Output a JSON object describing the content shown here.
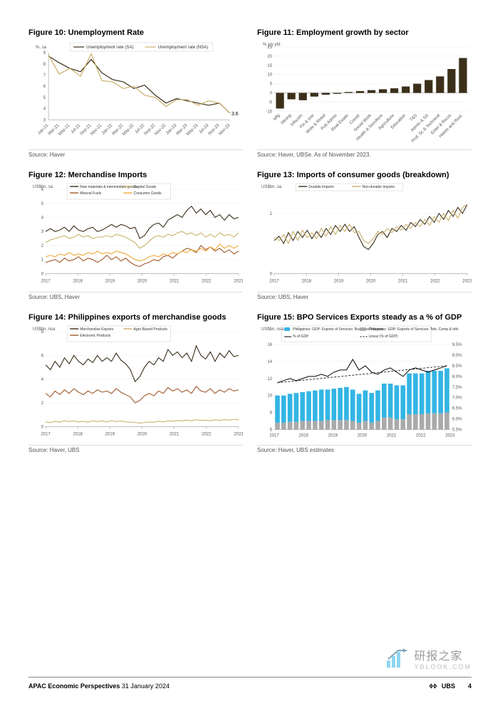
{
  "figures": {
    "f10": {
      "title": "Figure 10: Unemployment Rate",
      "ylabel": "%, sa",
      "ylim": [
        3,
        9
      ],
      "yticks": [
        3,
        4,
        5,
        6,
        7,
        8,
        9
      ],
      "xticks": [
        "Jan-21",
        "Mar-21",
        "May-21",
        "Jul-21",
        "Sep-21",
        "Nov-21",
        "Jan-22",
        "Mar-22",
        "May-22",
        "Jul-22",
        "Sep-22",
        "Nov-22",
        "Jan-23",
        "Mar-23",
        "May-23",
        "Jul-23",
        "Sep-23",
        "Nov-23"
      ],
      "series": [
        {
          "name": "Unemployment rate (SA)",
          "color": "#3b2f1a",
          "vals": [
            8.7,
            8.1,
            7.6,
            7.3,
            8.4,
            7.2,
            6.6,
            6.4,
            5.8,
            6.1,
            5.2,
            4.5,
            4.9,
            4.7,
            4.5,
            4.3,
            4.5,
            3.6
          ]
        },
        {
          "name": "Unemployment rate (NSA)",
          "color": "#c9b06a",
          "vals": [
            8.8,
            7.1,
            7.6,
            6.9,
            8.9,
            6.5,
            6.4,
            5.8,
            6.0,
            5.2,
            5.0,
            4.2,
            4.8,
            4.8,
            4.3,
            4.7,
            4.5,
            3.6
          ]
        }
      ],
      "end_label": "3.6",
      "source": "Source: Haver",
      "title_fontsize": 11,
      "label_fontsize": 6
    },
    "f11": {
      "title": "Figure 11: Employment growth by sector",
      "ylabel": "% y/y ytd",
      "ylim": [
        -10,
        25
      ],
      "yticks": [
        -10,
        -5,
        0,
        5,
        10,
        15,
        20,
        25
      ],
      "categories": [
        "Mfg",
        "Mining",
        "Infocom",
        "Fin & Insr",
        "Wsle & Retail",
        "Pub Admin",
        "Real Estate",
        "Constr",
        "Social Work",
        "Health & Soculture",
        "Agriculture",
        "Education",
        "T&S",
        "Admin & SS",
        "Prof, Sc & Technical",
        "Enter & Recre",
        "Hotels and Rest."
      ],
      "values": [
        -8.5,
        -3.5,
        -4.0,
        -2.0,
        -1.0,
        -0.5,
        0.5,
        1.0,
        1.5,
        2.0,
        2.5,
        3.5,
        5.0,
        7.0,
        9.0,
        13.0,
        19.0
      ],
      "bar_color": "#3b2f1a",
      "source": "Source: Haver, UBSe. As of November 2023."
    },
    "f12": {
      "title": "Figure 12: Merchandise Imports",
      "ylabel": "US$bn, sa",
      "ylim": [
        0,
        6
      ],
      "yticks": [
        0,
        1,
        2,
        3,
        4,
        5,
        6
      ],
      "xticks": [
        "2017",
        "2018",
        "2019",
        "2020",
        "2021",
        "2022",
        "2023"
      ],
      "series": [
        {
          "name": "Raw materials & intermediate goods",
          "color": "#3b2f1a",
          "vals": [
            3.0,
            3.2,
            3.0,
            3.1,
            3.3,
            3.0,
            3.4,
            3.1,
            3.0,
            3.2,
            3.3,
            3.0,
            3.1,
            3.3,
            3.5,
            3.3,
            3.5,
            3.4,
            3.2,
            3.3,
            2.5,
            2.7,
            3.2,
            3.5,
            3.6,
            3.3,
            3.8,
            4.0,
            4.2,
            4.0,
            4.5,
            4.8,
            4.3,
            4.6,
            4.2,
            4.5,
            4.0,
            4.2,
            3.8,
            4.2,
            3.9,
            4.0
          ]
        },
        {
          "name": "Capital Goods",
          "color": "#c9b06a",
          "vals": [
            2.2,
            2.4,
            2.5,
            2.6,
            2.7,
            2.5,
            2.6,
            2.8,
            2.6,
            2.7,
            2.5,
            2.6,
            2.6,
            2.7,
            2.6,
            2.8,
            2.7,
            2.6,
            2.4,
            2.2,
            1.8,
            2.0,
            2.3,
            2.6,
            2.7,
            2.6,
            2.8,
            2.7,
            2.9,
            3.0,
            2.8,
            2.9,
            2.7,
            2.9,
            2.6,
            2.8,
            2.6,
            2.9,
            2.7,
            2.8,
            2.6,
            2.9
          ]
        },
        {
          "name": "Mineral Fuels",
          "color": "#a05a2c",
          "vals": [
            0.8,
            0.9,
            1.0,
            0.8,
            1.1,
            0.9,
            1.0,
            1.2,
            0.9,
            1.1,
            1.0,
            0.8,
            1.0,
            1.3,
            1.0,
            1.2,
            0.9,
            1.1,
            0.8,
            0.6,
            0.5,
            0.7,
            0.8,
            1.0,
            0.9,
            1.2,
            1.3,
            1.1,
            1.4,
            1.6,
            1.8,
            1.7,
            1.5,
            2.0,
            1.7,
            1.9,
            1.6,
            1.8,
            1.5,
            1.7,
            1.4,
            1.6
          ]
        },
        {
          "name": "Consumer Goods",
          "color": "#f0a838",
          "vals": [
            1.2,
            1.3,
            1.2,
            1.4,
            1.3,
            1.5,
            1.3,
            1.4,
            1.3,
            1.5,
            1.4,
            1.6,
            1.4,
            1.5,
            1.4,
            1.6,
            1.5,
            1.4,
            1.2,
            1.0,
            0.9,
            1.0,
            1.2,
            1.3,
            1.2,
            1.4,
            1.3,
            1.5,
            1.4,
            1.6,
            1.5,
            1.7,
            1.6,
            1.8,
            1.6,
            1.9,
            1.7,
            2.1,
            1.8,
            2.0,
            1.8,
            2.0
          ]
        }
      ],
      "source": "Source: UBS, Haver"
    },
    "f13": {
      "title": "Figure 13: Imports of consumer goods (breakdown)",
      "ylabel": "US$bn, sa",
      "ylim": [
        0,
        1.4
      ],
      "yticks": [
        0,
        1
      ],
      "xticks": [
        "2017",
        "2018",
        "2019",
        "2020",
        "2021",
        "2022",
        "2023"
      ],
      "series": [
        {
          "name": "Durable Imports",
          "color": "#3b2f1a",
          "vals": [
            0.55,
            0.62,
            0.5,
            0.68,
            0.55,
            0.7,
            0.6,
            0.72,
            0.58,
            0.7,
            0.6,
            0.75,
            0.65,
            0.8,
            0.7,
            0.82,
            0.7,
            0.78,
            0.6,
            0.45,
            0.4,
            0.5,
            0.65,
            0.7,
            0.6,
            0.75,
            0.7,
            0.8,
            0.72,
            0.85,
            0.78,
            0.9,
            0.82,
            0.95,
            0.85,
            1.0,
            0.9,
            1.05,
            0.95,
            1.1,
            1.0,
            1.15
          ]
        },
        {
          "name": "Non-durable Imports",
          "color": "#c9b06a",
          "vals": [
            0.6,
            0.55,
            0.65,
            0.5,
            0.7,
            0.55,
            0.72,
            0.6,
            0.68,
            0.58,
            0.75,
            0.62,
            0.78,
            0.65,
            0.8,
            0.7,
            0.82,
            0.68,
            0.7,
            0.55,
            0.5,
            0.58,
            0.7,
            0.65,
            0.75,
            0.68,
            0.78,
            0.72,
            0.82,
            0.75,
            0.85,
            0.78,
            0.9,
            0.8,
            0.95,
            0.85,
            1.0,
            0.88,
            1.05,
            0.92,
            1.1,
            1.15
          ]
        }
      ],
      "source": "Source: UBS, Haver"
    },
    "f14": {
      "title": "Figure 14: Philippines exports of merchandise goods",
      "ylabel": "US$bn, nsa",
      "ylim": [
        0,
        8
      ],
      "yticks": [
        0,
        2,
        4,
        6,
        8
      ],
      "xticks": [
        "2017",
        "2018",
        "2019",
        "2020",
        "2021",
        "2022",
        "2023"
      ],
      "series": [
        {
          "name": "Merchandise Exports",
          "color": "#3b2f1a",
          "vals": [
            5.2,
            4.8,
            5.5,
            5.0,
            5.8,
            5.3,
            6.0,
            5.5,
            5.2,
            5.7,
            5.4,
            6.0,
            5.5,
            5.8,
            5.5,
            6.2,
            5.6,
            5.3,
            4.8,
            3.8,
            4.2,
            5.0,
            5.5,
            5.2,
            5.8,
            5.5,
            6.5,
            6.0,
            6.3,
            5.8,
            6.2,
            5.5,
            6.8,
            6.0,
            5.7,
            6.3,
            5.5,
            6.2,
            5.8,
            6.4,
            5.9,
            6.0
          ]
        },
        {
          "name": "Agro-Based Products",
          "color": "#c9b06a",
          "vals": [
            0.4,
            0.35,
            0.45,
            0.38,
            0.5,
            0.42,
            0.48,
            0.4,
            0.45,
            0.38,
            0.5,
            0.42,
            0.48,
            0.4,
            0.5,
            0.42,
            0.48,
            0.4,
            0.38,
            0.35,
            0.3,
            0.35,
            0.4,
            0.38,
            0.45,
            0.4,
            0.5,
            0.45,
            0.52,
            0.48,
            0.55,
            0.5,
            0.58,
            0.52,
            0.55,
            0.5,
            0.58,
            0.52,
            0.6,
            0.55,
            0.62,
            0.58
          ]
        },
        {
          "name": "Electronic Products",
          "color": "#a05a2c",
          "vals": [
            2.8,
            2.5,
            3.0,
            2.7,
            3.1,
            2.8,
            3.2,
            2.9,
            2.7,
            3.0,
            2.8,
            3.1,
            2.9,
            3.0,
            2.8,
            3.2,
            2.9,
            2.7,
            2.5,
            2.0,
            2.2,
            2.6,
            2.8,
            2.6,
            3.0,
            2.8,
            3.3,
            3.0,
            3.2,
            2.9,
            3.1,
            2.8,
            3.4,
            3.0,
            2.9,
            3.2,
            2.8,
            3.1,
            2.9,
            3.2,
            3.0,
            3.1
          ]
        }
      ],
      "source": "Source: Haver, UBS"
    },
    "f15": {
      "title": "Figure 15: BPO Services Exports steady as a % of GDP",
      "ylabel": "US$bn, nsa",
      "ylim": [
        6,
        16
      ],
      "yticks": [
        6,
        8,
        10,
        12,
        14,
        16
      ],
      "ylim2": [
        5.5,
        9.5
      ],
      "yticks2": [
        "5.5%",
        "6.0%",
        "6.5%",
        "7.0%",
        "7.5%",
        "8.0%",
        "8.5%",
        "9.0%",
        "9.5%"
      ],
      "xticks": [
        "2017",
        "2018",
        "2019",
        "2020",
        "2021",
        "2022",
        "2023"
      ],
      "legend": [
        "Philippines: GDP: Exports of Services: Business Services",
        "Philippines: GDP: Exports of Services: Tele, Comp & Info",
        "% of GDP",
        "Linear (% of GDP)"
      ],
      "legend_colors": [
        "#33b5e5",
        "#aaaaaa",
        "#000000",
        "#000000"
      ],
      "periods": 28,
      "grey_vals": [
        6.8,
        6.8,
        6.9,
        6.9,
        7.0,
        7.0,
        7.0,
        7.0,
        7.1,
        7.1,
        7.1,
        7.1,
        7.0,
        6.8,
        7.0,
        6.8,
        7.0,
        7.4,
        7.4,
        7.2,
        7.2,
        7.8,
        7.8,
        7.8,
        7.9,
        7.9,
        7.9,
        8.0
      ],
      "blue_vals": [
        3.2,
        3.2,
        3.3,
        3.4,
        3.4,
        3.5,
        3.6,
        3.7,
        3.6,
        3.7,
        3.8,
        3.9,
        3.7,
        3.4,
        3.6,
        3.5,
        3.6,
        4.0,
        4.0,
        4.0,
        4.0,
        4.8,
        4.8,
        4.8,
        5.0,
        5.0,
        5.0,
        5.2
      ],
      "pct_vals": [
        7.7,
        7.8,
        7.9,
        7.8,
        7.9,
        8.0,
        8.0,
        8.1,
        8.0,
        8.2,
        8.3,
        8.3,
        8.8,
        8.3,
        8.5,
        8.2,
        8.1,
        8.3,
        8.4,
        8.2,
        8.0,
        8.3,
        8.4,
        8.3,
        8.2,
        8.3,
        8.4,
        8.5
      ],
      "source": "Source: Haver, UBS estimates"
    }
  },
  "footer": {
    "title": "APAC Economic Perspectives",
    "date": "31 January 2024",
    "brand": "UBS",
    "page": "4"
  },
  "watermark": {
    "text": "研报之家",
    "url": "YBLOOK.COM"
  }
}
